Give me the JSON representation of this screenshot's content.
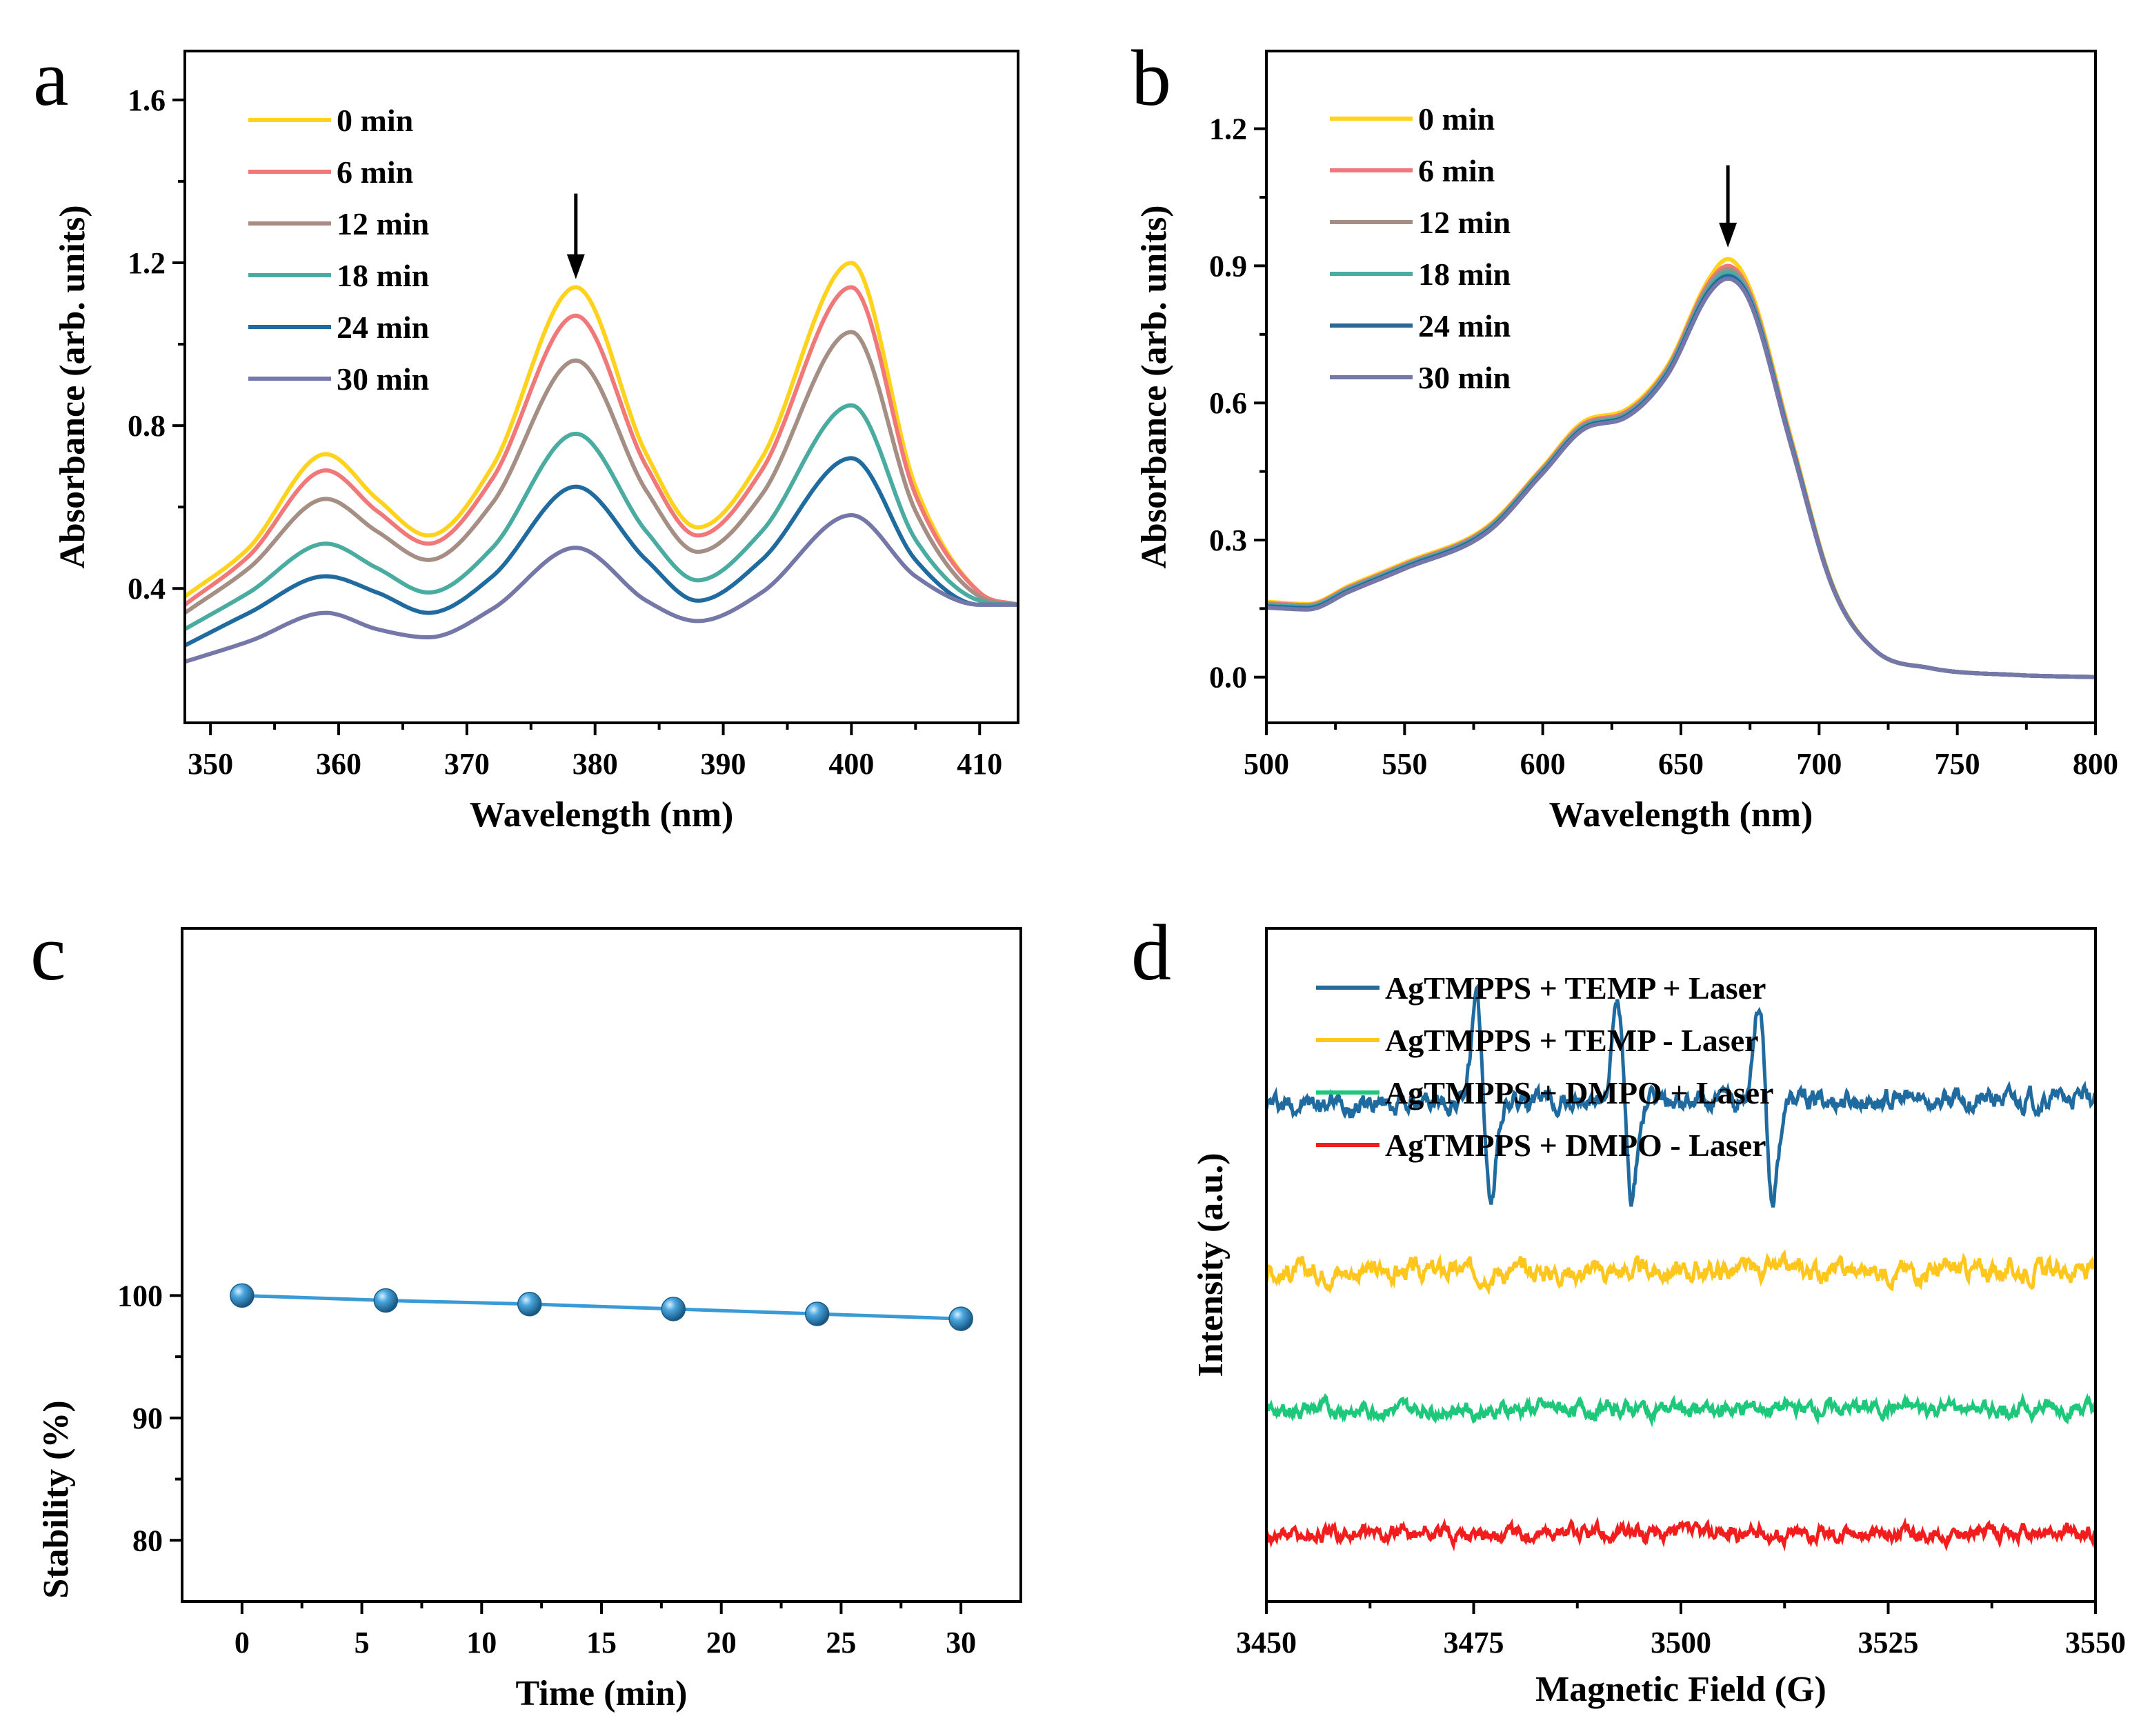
{
  "chart_data": [
    {
      "id": "a",
      "panel_label": "a",
      "type": "line",
      "xlabel": "Wavelength (nm)",
      "ylabel": "Absorbance (arb. units)",
      "xlim": [
        348,
        413
      ],
      "ylim": [
        0.07,
        1.72
      ],
      "xticks": [
        350,
        360,
        370,
        380,
        390,
        400,
        410
      ],
      "yticks": [
        0.4,
        0.8,
        1.2,
        1.6
      ],
      "ytick_labels": [
        "0.4",
        "0.8",
        "1.2",
        "1.6"
      ],
      "annotation": {
        "type": "arrow",
        "x": 378.5,
        "y_from": 1.37,
        "y_to": 1.16
      },
      "legend_position": "top-left",
      "series": [
        {
          "name": "0 min",
          "color": "#FFD21E",
          "x": [
            348,
            353,
            359,
            363,
            367,
            372,
            378.5,
            384,
            388,
            393,
            400,
            405,
            410,
            413
          ],
          "y": [
            0.38,
            0.5,
            0.73,
            0.62,
            0.53,
            0.7,
            1.14,
            0.73,
            0.55,
            0.72,
            1.2,
            0.65,
            0.39,
            0.36
          ]
        },
        {
          "name": "6 min",
          "color": "#F07878",
          "x": [
            348,
            353,
            359,
            363,
            367,
            372,
            378.5,
            384,
            388,
            393,
            400,
            405,
            410,
            413
          ],
          "y": [
            0.36,
            0.48,
            0.69,
            0.59,
            0.51,
            0.67,
            1.07,
            0.7,
            0.53,
            0.69,
            1.14,
            0.63,
            0.39,
            0.36
          ]
        },
        {
          "name": "12 min",
          "color": "#A58E83",
          "x": [
            348,
            353,
            359,
            363,
            367,
            372,
            378.5,
            384,
            388,
            393,
            400,
            405,
            410,
            413
          ],
          "y": [
            0.34,
            0.45,
            0.62,
            0.54,
            0.47,
            0.61,
            0.96,
            0.64,
            0.49,
            0.63,
            1.03,
            0.59,
            0.38,
            0.36
          ]
        },
        {
          "name": "18 min",
          "color": "#4AACA0",
          "x": [
            348,
            353,
            359,
            363,
            367,
            372,
            378.5,
            384,
            388,
            393,
            400,
            405,
            410,
            413
          ],
          "y": [
            0.3,
            0.39,
            0.51,
            0.45,
            0.39,
            0.5,
            0.78,
            0.54,
            0.42,
            0.54,
            0.85,
            0.52,
            0.37,
            0.36
          ]
        },
        {
          "name": "24 min",
          "color": "#1F6BA0",
          "x": [
            348,
            353,
            359,
            363,
            367,
            372,
            378.5,
            384,
            388,
            393,
            400,
            405,
            410,
            413
          ],
          "y": [
            0.26,
            0.34,
            0.43,
            0.39,
            0.34,
            0.43,
            0.65,
            0.47,
            0.37,
            0.47,
            0.72,
            0.47,
            0.36,
            0.36
          ]
        },
        {
          "name": "30 min",
          "color": "#7477A8",
          "x": [
            348,
            353,
            359,
            363,
            367,
            372,
            378.5,
            384,
            388,
            393,
            400,
            405,
            410,
            413
          ],
          "y": [
            0.22,
            0.27,
            0.34,
            0.3,
            0.28,
            0.35,
            0.5,
            0.37,
            0.32,
            0.39,
            0.58,
            0.43,
            0.36,
            0.36
          ]
        }
      ]
    },
    {
      "id": "b",
      "panel_label": "b",
      "type": "line",
      "xlabel": "Wavelength (nm)",
      "ylabel": "Absorbance (arb. units)",
      "xlim": [
        500,
        800
      ],
      "ylim": [
        -0.1,
        1.37
      ],
      "xticks": [
        500,
        550,
        600,
        650,
        700,
        750,
        800
      ],
      "yticks": [
        0.0,
        0.3,
        0.6,
        0.9,
        1.2
      ],
      "ytick_labels": [
        "0.0",
        "0.3",
        "0.6",
        "0.9",
        "1.2"
      ],
      "annotation": {
        "type": "arrow",
        "x": 667,
        "y_from": 1.12,
        "y_to": 0.94
      },
      "legend_position": "top-left",
      "series": [
        {
          "name": "0 min",
          "color": "#FFD21E",
          "x": [
            500,
            515,
            530,
            550,
            580,
            600,
            615,
            630,
            645,
            660,
            667,
            675,
            690,
            705,
            720,
            740,
            770,
            800
          ],
          "y": [
            0.165,
            0.16,
            0.2,
            0.25,
            0.33,
            0.46,
            0.56,
            0.585,
            0.68,
            0.87,
            0.915,
            0.85,
            0.52,
            0.2,
            0.06,
            0.02,
            0.005,
            0.0
          ]
        },
        {
          "name": "6 min",
          "color": "#F07878",
          "x": [
            500,
            515,
            530,
            550,
            580,
            600,
            615,
            630,
            645,
            660,
            667,
            675,
            690,
            705,
            720,
            740,
            770,
            800
          ],
          "y": [
            0.162,
            0.158,
            0.197,
            0.247,
            0.327,
            0.457,
            0.555,
            0.58,
            0.675,
            0.862,
            0.9,
            0.84,
            0.515,
            0.198,
            0.06,
            0.02,
            0.005,
            0.0
          ]
        },
        {
          "name": "12 min",
          "color": "#A58E83",
          "x": [
            500,
            515,
            530,
            550,
            580,
            600,
            615,
            630,
            645,
            660,
            667,
            675,
            690,
            705,
            720,
            740,
            770,
            800
          ],
          "y": [
            0.16,
            0.156,
            0.195,
            0.245,
            0.325,
            0.455,
            0.552,
            0.577,
            0.672,
            0.856,
            0.893,
            0.835,
            0.512,
            0.197,
            0.06,
            0.02,
            0.005,
            0.0
          ]
        },
        {
          "name": "18 min",
          "color": "#4AACA0",
          "x": [
            500,
            515,
            530,
            550,
            580,
            600,
            615,
            630,
            645,
            660,
            667,
            675,
            690,
            705,
            720,
            740,
            770,
            800
          ],
          "y": [
            0.158,
            0.154,
            0.193,
            0.243,
            0.323,
            0.452,
            0.549,
            0.574,
            0.668,
            0.85,
            0.886,
            0.83,
            0.509,
            0.196,
            0.06,
            0.02,
            0.005,
            0.0
          ]
        },
        {
          "name": "24 min",
          "color": "#1F6BA0",
          "x": [
            500,
            515,
            530,
            550,
            580,
            600,
            615,
            630,
            645,
            660,
            667,
            675,
            690,
            705,
            720,
            740,
            770,
            800
          ],
          "y": [
            0.155,
            0.151,
            0.19,
            0.24,
            0.32,
            0.449,
            0.546,
            0.571,
            0.664,
            0.844,
            0.878,
            0.825,
            0.506,
            0.195,
            0.06,
            0.02,
            0.005,
            0.0
          ]
        },
        {
          "name": "30 min",
          "color": "#7477A8",
          "x": [
            500,
            515,
            530,
            550,
            580,
            600,
            615,
            630,
            645,
            660,
            667,
            675,
            690,
            705,
            720,
            740,
            770,
            800
          ],
          "y": [
            0.152,
            0.148,
            0.187,
            0.237,
            0.317,
            0.446,
            0.543,
            0.568,
            0.66,
            0.838,
            0.872,
            0.82,
            0.503,
            0.194,
            0.06,
            0.02,
            0.005,
            0.0
          ]
        }
      ]
    },
    {
      "id": "c",
      "panel_label": "c",
      "type": "line",
      "xlabel": "Time (min)",
      "ylabel": "Stability (%)",
      "xlim": [
        -2.5,
        32.5
      ],
      "ylim": [
        75,
        130
      ],
      "xticks": [
        0,
        5,
        10,
        15,
        20,
        25,
        30
      ],
      "yticks": [
        80,
        90,
        100
      ],
      "ytick_labels": [
        "80",
        "90",
        "100"
      ],
      "series": [
        {
          "name": "Stability",
          "color": "#3A9AD6",
          "marker": "sphere",
          "x": [
            0,
            6,
            12,
            18,
            24,
            30
          ],
          "y": [
            100.0,
            99.6,
            99.3,
            98.9,
            98.5,
            98.1
          ]
        }
      ]
    },
    {
      "id": "d",
      "panel_label": "d",
      "type": "line",
      "xlabel": "Magnetic Field (G)",
      "ylabel": "Intensity (a.u.)",
      "xlim": [
        3450,
        3550
      ],
      "ylim": [
        0,
        100
      ],
      "xticks": [
        3450,
        3475,
        3500,
        3525,
        3550
      ],
      "yticks": [],
      "legend_position": "top-left",
      "series": [
        {
          "name": "AgTMPPS + TEMP + Laser",
          "color": "#1F6BA0",
          "baseline": 74,
          "noise": 0.9,
          "peaks": [
            3476.2,
            3493.2,
            3510.2
          ],
          "peak_amplitude": 14.5
        },
        {
          "name": "AgTMPPS + TEMP - Laser",
          "color": "#FFC61E",
          "baseline": 49,
          "noise": 0.9,
          "peaks": [],
          "peak_amplitude": 0
        },
        {
          "name": "AgTMPPS + DMPO + Laser",
          "color": "#1DC87A",
          "baseline": 28.5,
          "noise": 0.7,
          "peaks": [],
          "peak_amplitude": 0
        },
        {
          "name": "AgTMPPS + DMPO - Laser",
          "color": "#F21E1E",
          "baseline": 10,
          "noise": 0.7,
          "peaks": [],
          "peak_amplitude": 0
        }
      ]
    }
  ]
}
